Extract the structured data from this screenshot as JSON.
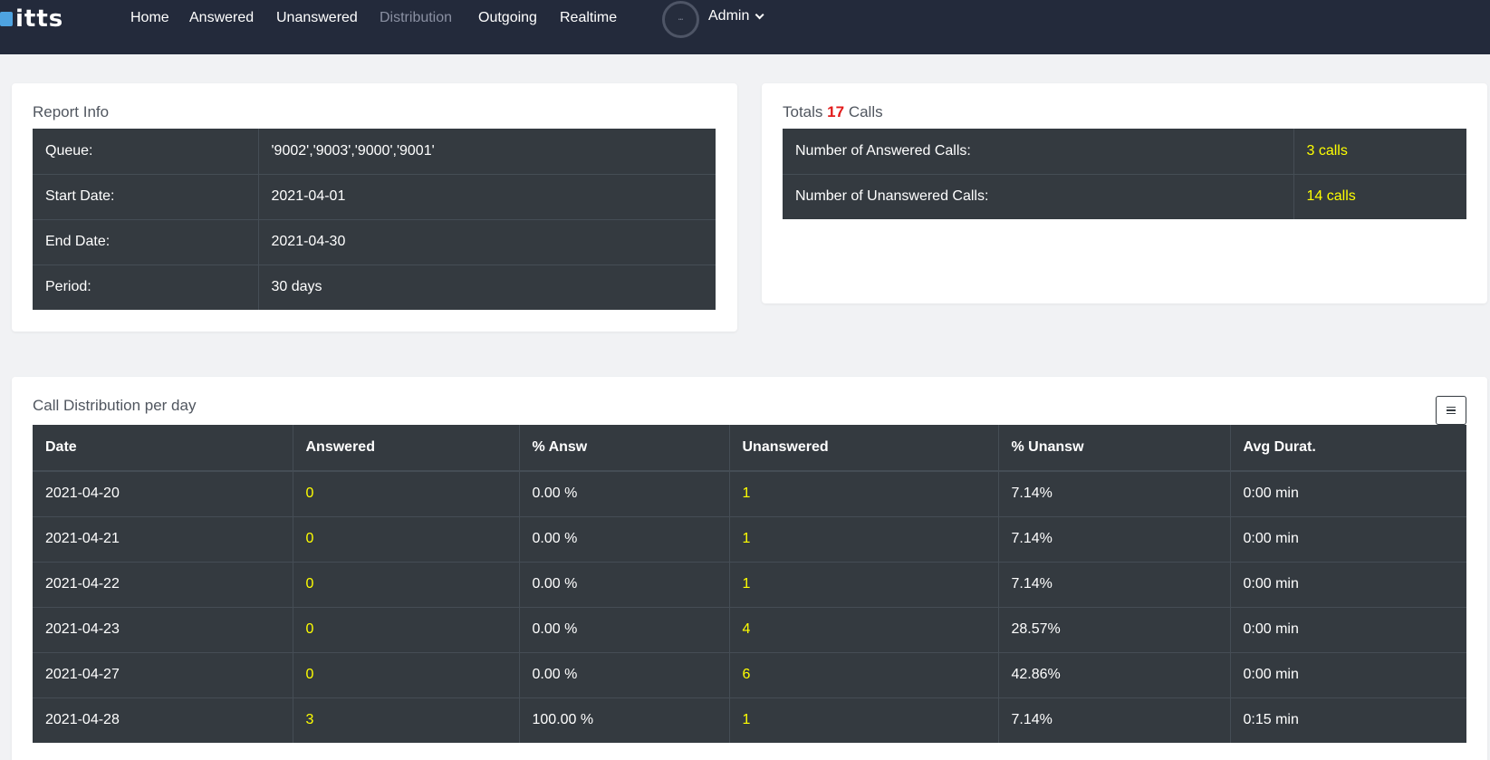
{
  "nav": {
    "logo_text": "itts",
    "links": [
      "Home",
      "Answered",
      "Unanswered",
      "Distribution",
      "Outgoing",
      "Realtime"
    ],
    "user": "Admin"
  },
  "report_info": {
    "title": "Report Info",
    "rows": [
      {
        "label": "Queue:",
        "value": "'9002','9003','9000','9001'"
      },
      {
        "label": "Start Date:",
        "value": "2021-04-01"
      },
      {
        "label": "End Date:",
        "value": "2021-04-30"
      },
      {
        "label": "Period:",
        "value": "30 days"
      }
    ]
  },
  "totals": {
    "title_prefix": "Totals",
    "count": "17",
    "title_suffix": "Calls",
    "rows": [
      {
        "label": "Number of Answered Calls:",
        "value": "3 calls"
      },
      {
        "label": "Number of Unanswered Calls:",
        "value": "14 calls"
      }
    ]
  },
  "distribution": {
    "title": "Call Distribution per day",
    "headers": [
      "Date",
      "Answered",
      "% Answ",
      "Unanswered",
      "% Unansw",
      "Avg Durat."
    ],
    "rows": [
      [
        "2021-04-20",
        "0",
        "0.00 %",
        "1",
        "7.14%",
        "0:00 min"
      ],
      [
        "2021-04-21",
        "0",
        "0.00 %",
        "1",
        "7.14%",
        "0:00 min"
      ],
      [
        "2021-04-22",
        "0",
        "0.00 %",
        "1",
        "7.14%",
        "0:00 min"
      ],
      [
        "2021-04-23",
        "0",
        "0.00 %",
        "4",
        "28.57%",
        "0:00 min"
      ],
      [
        "2021-04-27",
        "0",
        "0.00 %",
        "6",
        "42.86%",
        "0:00 min"
      ],
      [
        "2021-04-28",
        "3",
        "100.00 %",
        "1",
        "7.14%",
        "0:15 min"
      ]
    ]
  }
}
